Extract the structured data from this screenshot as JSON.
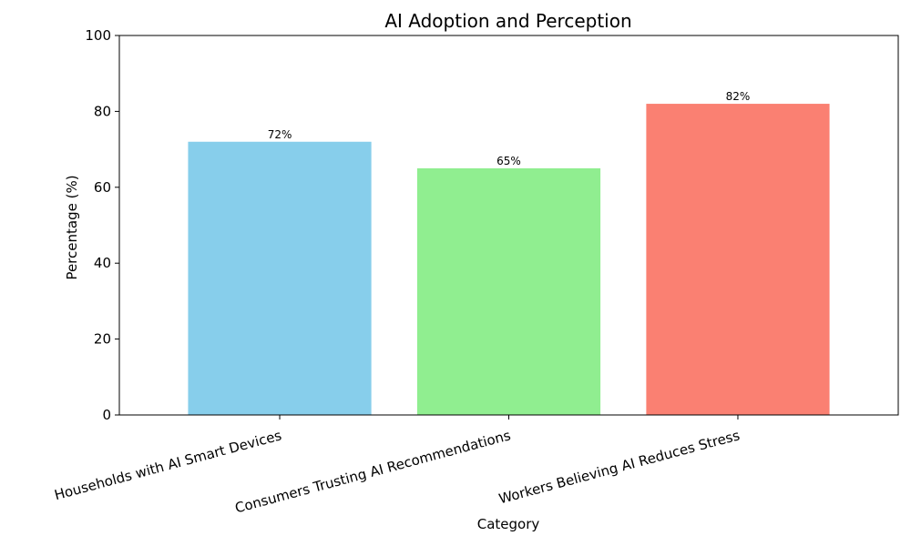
{
  "chart_data": {
    "type": "bar",
    "title": "AI Adoption and Perception",
    "xlabel": "Category",
    "ylabel": "Percentage (%)",
    "ylim": [
      0,
      100
    ],
    "yticks": [
      0,
      20,
      40,
      60,
      80,
      100
    ],
    "grid": false,
    "categories": [
      "Households with AI Smart Devices",
      "Consumers Trusting AI Recommendations",
      "Workers Believing AI Reduces Stress"
    ],
    "values": [
      72,
      65,
      82
    ],
    "value_labels": [
      "72%",
      "65%",
      "82%"
    ],
    "colors": [
      "#87ceeb",
      "#90ee90",
      "#fa8072"
    ]
  }
}
